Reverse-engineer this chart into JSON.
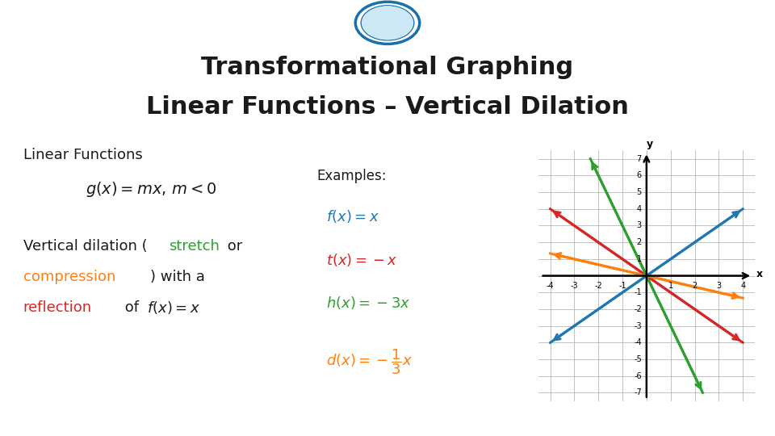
{
  "title_line1": "Transformational Graphing",
  "title_line2": "Linear Functions – Vertical Dilation",
  "title_fontsize": 22,
  "title_color": "#1a1a1a",
  "bg_color": "#ffffff",
  "header_bar_color_top": "#29a8e0",
  "header_bar_color_bot": "#1a6fad",
  "slopes": [
    1,
    -1,
    -3,
    -0.3333
  ],
  "line_colors": [
    "#1f77b4",
    "#d62728",
    "#2ca02c",
    "#ff7f0e"
  ],
  "graph_xlim": [
    -4,
    4
  ],
  "graph_ylim": [
    -7,
    7
  ]
}
